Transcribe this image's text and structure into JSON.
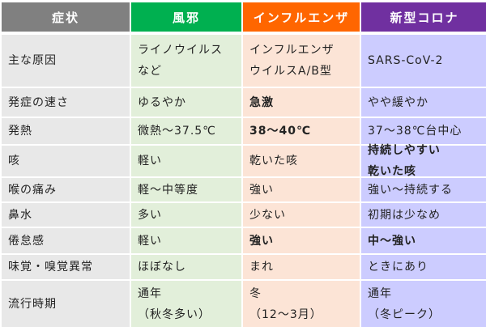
{
  "colors": {
    "header_symptom": "#808080",
    "header_cold": "#00b050",
    "header_flu": "#ff6600",
    "header_covid": "#7030a0",
    "cell_symptom": "#e8e8e8",
    "cell_cold": "#e2efda",
    "cell_flu": "#fce4d6",
    "cell_covid": "#ccccff"
  },
  "headers": [
    "症状",
    "風邪",
    "インフルエンザ",
    "新型コロナ"
  ],
  "rows": [
    {
      "symptom": "主な原因",
      "cold": "ライノウイルス\nなど",
      "flu": "インフルエンザ\nウイルスA/B型",
      "covid": "SARS-CoV-2"
    },
    {
      "symptom": "発症の速さ",
      "cold": "ゆるやか",
      "flu": "急激",
      "covid": "やや緩やか"
    },
    {
      "symptom": "発熱",
      "cold": "微熱〜37.5℃",
      "flu": "38〜40℃",
      "covid": "37〜38℃台中心"
    },
    {
      "symptom": "咳",
      "cold": "軽い",
      "flu": "乾いた咳",
      "covid": "持続しやすい\n乾いた咳"
    },
    {
      "symptom": "喉の痛み",
      "cold": "軽〜中等度",
      "flu": "強い",
      "covid": "強い〜持続する"
    },
    {
      "symptom": "鼻水",
      "cold": "多い",
      "flu": "少ない",
      "covid": "初期は少なめ"
    },
    {
      "symptom": "倦怠感",
      "cold": "軽い",
      "flu": "強い",
      "covid": "中〜強い"
    },
    {
      "symptom": "味覚・嗅覚異常",
      "cold": "ほぼなし",
      "flu": "まれ",
      "covid": "ときにあり"
    },
    {
      "symptom": "流行時期",
      "cold": "通年\n（秋冬多い）",
      "flu": "冬\n（12〜3月）",
      "covid": "通年\n（冬ピーク）"
    }
  ]
}
